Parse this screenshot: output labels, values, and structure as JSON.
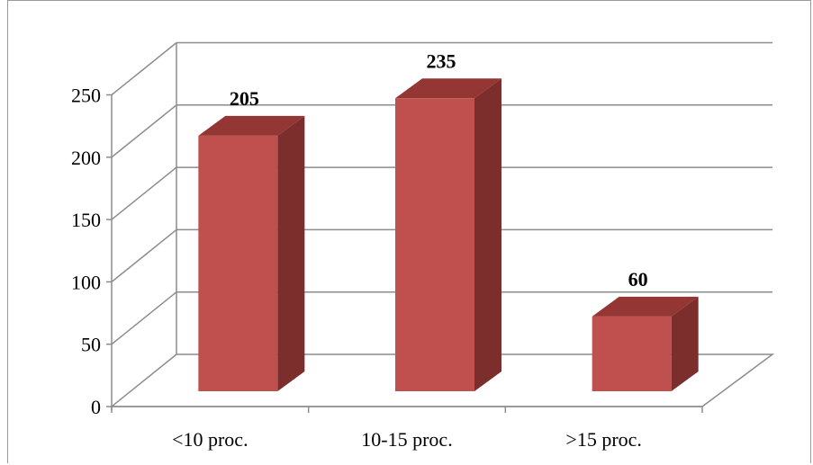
{
  "chart_data": {
    "type": "bar",
    "categories": [
      "<10 proc.",
      "10-15 proc.",
      ">15 proc."
    ],
    "values": [
      205,
      235,
      60
    ],
    "data_labels": [
      "205",
      "235",
      "60"
    ],
    "title": "",
    "xlabel": "",
    "ylabel": "",
    "ylim": [
      0,
      250
    ],
    "yticks": [
      0,
      50,
      100,
      150,
      200,
      250
    ],
    "ytick_labels": [
      "0",
      "50",
      "100",
      "150",
      "200",
      "250"
    ],
    "grid": true,
    "legend": "none",
    "style": "3d-column"
  },
  "colors": {
    "bar_front": "#c0504d",
    "bar_side": "#7b2e2c",
    "bar_top": "#943634",
    "grid": "#8c8c8c",
    "axis": "#8c8c8c"
  }
}
